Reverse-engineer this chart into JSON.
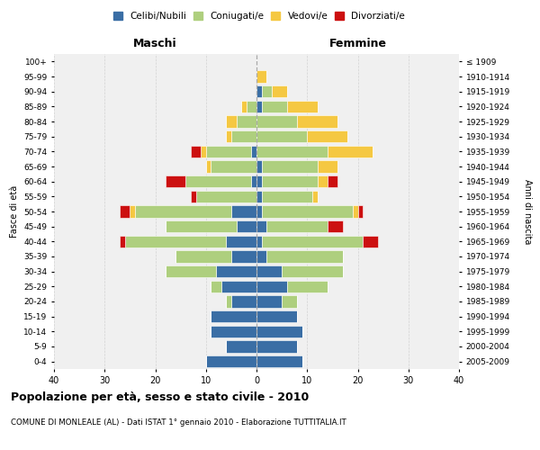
{
  "age_groups": [
    "0-4",
    "5-9",
    "10-14",
    "15-19",
    "20-24",
    "25-29",
    "30-34",
    "35-39",
    "40-44",
    "45-49",
    "50-54",
    "55-59",
    "60-64",
    "65-69",
    "70-74",
    "75-79",
    "80-84",
    "85-89",
    "90-94",
    "95-99",
    "100+"
  ],
  "birth_years": [
    "2005-2009",
    "2000-2004",
    "1995-1999",
    "1990-1994",
    "1985-1989",
    "1980-1984",
    "1975-1979",
    "1970-1974",
    "1965-1969",
    "1960-1964",
    "1955-1959",
    "1950-1954",
    "1945-1949",
    "1940-1944",
    "1935-1939",
    "1930-1934",
    "1925-1929",
    "1920-1924",
    "1915-1919",
    "1910-1914",
    "≤ 1909"
  ],
  "male": {
    "celibi": [
      10,
      6,
      9,
      9,
      5,
      7,
      8,
      5,
      6,
      4,
      5,
      0,
      1,
      0,
      1,
      0,
      0,
      0,
      0,
      0,
      0
    ],
    "coniugati": [
      0,
      0,
      0,
      0,
      1,
      2,
      10,
      11,
      20,
      14,
      19,
      12,
      13,
      9,
      9,
      5,
      4,
      2,
      0,
      0,
      0
    ],
    "vedovi": [
      0,
      0,
      0,
      0,
      0,
      0,
      0,
      0,
      0,
      0,
      1,
      0,
      0,
      1,
      1,
      1,
      2,
      1,
      0,
      0,
      0
    ],
    "divorziati": [
      0,
      0,
      0,
      0,
      0,
      0,
      0,
      0,
      1,
      0,
      2,
      1,
      4,
      0,
      2,
      0,
      0,
      0,
      0,
      0,
      0
    ]
  },
  "female": {
    "nubili": [
      9,
      8,
      9,
      8,
      5,
      6,
      5,
      2,
      1,
      2,
      1,
      1,
      1,
      1,
      0,
      0,
      0,
      1,
      1,
      0,
      0
    ],
    "coniugate": [
      0,
      0,
      0,
      0,
      3,
      8,
      12,
      15,
      20,
      12,
      18,
      10,
      11,
      11,
      14,
      10,
      8,
      5,
      2,
      0,
      0
    ],
    "vedove": [
      0,
      0,
      0,
      0,
      0,
      0,
      0,
      0,
      0,
      0,
      1,
      1,
      2,
      4,
      9,
      8,
      8,
      6,
      3,
      2,
      0
    ],
    "divorziate": [
      0,
      0,
      0,
      0,
      0,
      0,
      0,
      0,
      3,
      3,
      1,
      0,
      2,
      0,
      0,
      0,
      0,
      0,
      0,
      0,
      0
    ]
  },
  "colors": {
    "celibi": "#3A6EA5",
    "coniugati": "#AECF7E",
    "vedovi": "#F5C842",
    "divorziati": "#CC1010"
  },
  "xlim": 40,
  "title": "Popolazione per età, sesso e stato civile - 2010",
  "subtitle": "COMUNE DI MONLEALE (AL) - Dati ISTAT 1° gennaio 2010 - Elaborazione TUTTITALIA.IT",
  "ylabel_left": "Fasce di età",
  "ylabel_right": "Anni di nascita",
  "xlabel_maschi": "Maschi",
  "xlabel_femmine": "Femmine",
  "legend_labels": [
    "Celibi/Nubili",
    "Coniugati/e",
    "Vedovi/e",
    "Divorziati/e"
  ],
  "background_color": "#ffffff",
  "grid_color": "#cccccc"
}
